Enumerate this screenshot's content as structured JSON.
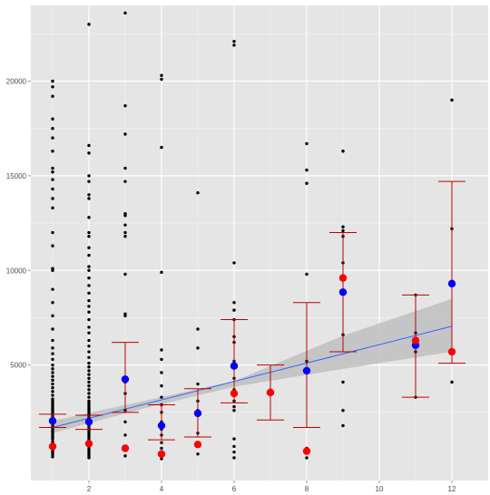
{
  "chart_data": {
    "type": "scatter",
    "title": "",
    "xlabel": "",
    "ylabel": "",
    "xlim": [
      0.4,
      13.0
    ],
    "ylim": [
      -1100,
      24000
    ],
    "x_ticks": [
      2,
      4,
      6,
      8,
      10,
      12
    ],
    "x_tick_labels": [
      "2",
      "4",
      "6",
      "8",
      "10",
      "12"
    ],
    "y_ticks": [
      5000,
      10000,
      15000,
      20000
    ],
    "y_tick_labels": [
      "5000",
      "10000",
      "15000",
      "20000"
    ],
    "grid": true,
    "background": "#e5e5e5",
    "colors": {
      "raw_points": "#000000",
      "mean": "#0000ff",
      "median": "#ff0000",
      "error_bar": "#c00000",
      "trend_line": "#3366ff",
      "confidence_band": "#bfbfbf"
    },
    "raw_points": [
      [
        1,
        150
      ],
      [
        1,
        250
      ],
      [
        1,
        350
      ],
      [
        1,
        450
      ],
      [
        1,
        550
      ],
      [
        1,
        650
      ],
      [
        1,
        750
      ],
      [
        1,
        850
      ],
      [
        1,
        950
      ],
      [
        1,
        1100
      ],
      [
        1,
        1200
      ],
      [
        1,
        1300
      ],
      [
        1,
        1400
      ],
      [
        1,
        1500
      ],
      [
        1,
        1600
      ],
      [
        1,
        1700
      ],
      [
        1,
        1800
      ],
      [
        1,
        1900
      ],
      [
        1,
        2000
      ],
      [
        1,
        2100
      ],
      [
        1,
        2200
      ],
      [
        1,
        2300
      ],
      [
        1,
        2400
      ],
      [
        1,
        2500
      ],
      [
        1,
        2600
      ],
      [
        1,
        2700
      ],
      [
        1,
        2800
      ],
      [
        1,
        2900
      ],
      [
        1,
        3000
      ],
      [
        1,
        3100
      ],
      [
        1,
        3200
      ],
      [
        1,
        3400
      ],
      [
        1,
        3600
      ],
      [
        1,
        3800
      ],
      [
        1,
        4000
      ],
      [
        1,
        4200
      ],
      [
        1,
        4400
      ],
      [
        1,
        4600
      ],
      [
        1,
        4800
      ],
      [
        1,
        5000
      ],
      [
        1,
        5300
      ],
      [
        1,
        5600
      ],
      [
        1,
        5900
      ],
      [
        1,
        6300
      ],
      [
        1,
        6900
      ],
      [
        1,
        7600
      ],
      [
        1,
        8300
      ],
      [
        1,
        9000
      ],
      [
        1,
        10000
      ],
      [
        1,
        10100
      ],
      [
        1,
        11300
      ],
      [
        1,
        12000
      ],
      [
        1,
        13300
      ],
      [
        1,
        13800
      ],
      [
        1,
        14300
      ],
      [
        1,
        14800
      ],
      [
        1,
        15200
      ],
      [
        1,
        15400
      ],
      [
        1,
        16300
      ],
      [
        1,
        17000
      ],
      [
        1,
        17500
      ],
      [
        1,
        18000
      ],
      [
        1,
        19200
      ],
      [
        1,
        19700
      ],
      [
        1,
        20000
      ],
      [
        2,
        100
      ],
      [
        2,
        200
      ],
      [
        2,
        300
      ],
      [
        2,
        400
      ],
      [
        2,
        500
      ],
      [
        2,
        600
      ],
      [
        2,
        700
      ],
      [
        2,
        800
      ],
      [
        2,
        900
      ],
      [
        2,
        1000
      ],
      [
        2,
        1100
      ],
      [
        2,
        1200
      ],
      [
        2,
        1300
      ],
      [
        2,
        1400
      ],
      [
        2,
        1500
      ],
      [
        2,
        1600
      ],
      [
        2,
        1700
      ],
      [
        2,
        1800
      ],
      [
        2,
        1900
      ],
      [
        2,
        2000
      ],
      [
        2,
        2100
      ],
      [
        2,
        2200
      ],
      [
        2,
        2300
      ],
      [
        2,
        2400
      ],
      [
        2,
        2500
      ],
      [
        2,
        2600
      ],
      [
        2,
        2700
      ],
      [
        2,
        2800
      ],
      [
        2,
        2900
      ],
      [
        2,
        3000
      ],
      [
        2,
        3100
      ],
      [
        2,
        3300
      ],
      [
        2,
        3500
      ],
      [
        2,
        3700
      ],
      [
        2,
        3900
      ],
      [
        2,
        4100
      ],
      [
        2,
        4300
      ],
      [
        2,
        4500
      ],
      [
        2,
        4700
      ],
      [
        2,
        4900
      ],
      [
        2,
        5100
      ],
      [
        2,
        5400
      ],
      [
        2,
        5700
      ],
      [
        2,
        6000
      ],
      [
        2,
        6300
      ],
      [
        2,
        6700
      ],
      [
        2,
        7000
      ],
      [
        2,
        7400
      ],
      [
        2,
        7800
      ],
      [
        2,
        8100
      ],
      [
        2,
        8400
      ],
      [
        2,
        8800
      ],
      [
        2,
        9200
      ],
      [
        2,
        9600
      ],
      [
        2,
        10000
      ],
      [
        2,
        10200
      ],
      [
        2,
        10800
      ],
      [
        2,
        11200
      ],
      [
        2,
        11800
      ],
      [
        2,
        12000
      ],
      [
        2,
        12800
      ],
      [
        2,
        13800
      ],
      [
        2,
        14000
      ],
      [
        2,
        14700
      ],
      [
        2,
        15000
      ],
      [
        2,
        16200
      ],
      [
        2,
        16600
      ],
      [
        2,
        23000
      ],
      [
        3,
        200
      ],
      [
        3,
        700
      ],
      [
        3,
        1300
      ],
      [
        3,
        2000
      ],
      [
        3,
        2600
      ],
      [
        3,
        3500
      ],
      [
        3,
        4100
      ],
      [
        3,
        7600
      ],
      [
        3,
        7700
      ],
      [
        3,
        9800
      ],
      [
        3,
        11800
      ],
      [
        3,
        12000
      ],
      [
        3,
        12400
      ],
      [
        3,
        12900
      ],
      [
        3,
        13000
      ],
      [
        3,
        14700
      ],
      [
        3,
        15400
      ],
      [
        3,
        17200
      ],
      [
        3,
        18700
      ],
      [
        3,
        23600
      ],
      [
        4,
        50
      ],
      [
        4,
        200
      ],
      [
        4,
        400
      ],
      [
        4,
        600
      ],
      [
        4,
        900
      ],
      [
        4,
        1300
      ],
      [
        4,
        1600
      ],
      [
        4,
        2000
      ],
      [
        4,
        2500
      ],
      [
        4,
        2900
      ],
      [
        4,
        3300
      ],
      [
        4,
        3900
      ],
      [
        4,
        4600
      ],
      [
        4,
        5300
      ],
      [
        4,
        5800
      ],
      [
        4,
        9900
      ],
      [
        4,
        16500
      ],
      [
        4,
        20100
      ],
      [
        4,
        20300
      ],
      [
        5,
        300
      ],
      [
        5,
        700
      ],
      [
        5,
        900
      ],
      [
        5,
        1400
      ],
      [
        5,
        2600
      ],
      [
        5,
        3100
      ],
      [
        5,
        4000
      ],
      [
        5,
        5900
      ],
      [
        5,
        6900
      ],
      [
        5,
        14100
      ],
      [
        6,
        100
      ],
      [
        6,
        400
      ],
      [
        6,
        700
      ],
      [
        6,
        1100
      ],
      [
        6,
        2600
      ],
      [
        6,
        2800
      ],
      [
        6,
        3100
      ],
      [
        6,
        3700
      ],
      [
        6,
        4300
      ],
      [
        6,
        5200
      ],
      [
        6,
        6200
      ],
      [
        6,
        6500
      ],
      [
        6,
        7400
      ],
      [
        6,
        7900
      ],
      [
        6,
        8300
      ],
      [
        6,
        10400
      ],
      [
        6,
        21900
      ],
      [
        6,
        22100
      ],
      [
        7,
        3600
      ],
      [
        8,
        100
      ],
      [
        8,
        500
      ],
      [
        8,
        600
      ],
      [
        8,
        5200
      ],
      [
        8,
        9800
      ],
      [
        8,
        14600
      ],
      [
        8,
        15300
      ],
      [
        8,
        16700
      ],
      [
        9,
        1800
      ],
      [
        9,
        2600
      ],
      [
        9,
        4100
      ],
      [
        9,
        6600
      ],
      [
        9,
        9500
      ],
      [
        9,
        10400
      ],
      [
        9,
        11800
      ],
      [
        9,
        12100
      ],
      [
        9,
        12300
      ],
      [
        9,
        16300
      ],
      [
        11,
        3300
      ],
      [
        11,
        5700
      ],
      [
        11,
        6700
      ],
      [
        11,
        8700
      ],
      [
        12,
        4100
      ],
      [
        12,
        5800
      ],
      [
        12,
        12200
      ],
      [
        12,
        19000
      ]
    ],
    "series": [
      {
        "x": [
          1,
          2,
          3,
          4,
          5,
          6,
          7,
          8,
          9,
          11,
          12
        ],
        "values": [
          2050,
          2000,
          4250,
          1800,
          2450,
          4950,
          3550,
          4700,
          8850,
          6050,
          9300
        ]
      },
      {
        "x": [
          1,
          2,
          3,
          4,
          5,
          6,
          7,
          8,
          9,
          11,
          12
        ],
        "values": [
          700,
          850,
          600,
          300,
          800,
          3500,
          3550,
          450,
          9600,
          6300,
          5700
        ]
      }
    ],
    "error_bars": [
      {
        "x": 1,
        "low": 1700,
        "high": 2400
      },
      {
        "x": 2,
        "low": 1600,
        "high": 2350
      },
      {
        "x": 3,
        "low": 2500,
        "high": 6200
      },
      {
        "x": 4,
        "low": 1050,
        "high": 2900
      },
      {
        "x": 5,
        "low": 1200,
        "high": 3750
      },
      {
        "x": 6,
        "low": 3000,
        "high": 7400
      },
      {
        "x": 7,
        "low": 2100,
        "high": 5000
      },
      {
        "x": 8,
        "low": 1700,
        "high": 8300
      },
      {
        "x": 9,
        "low": 5700,
        "high": 12000
      },
      {
        "x": 11,
        "low": 3300,
        "high": 8700
      },
      {
        "x": 12,
        "low": 5100,
        "high": 14700
      }
    ],
    "trend_line": {
      "x": [
        1,
        12
      ],
      "y": [
        1700,
        7050
      ]
    },
    "confidence_band": {
      "x": [
        1,
        3.5,
        6,
        9,
        12
      ],
      "low": [
        1400,
        2700,
        3850,
        4800,
        5700
      ],
      "high": [
        2050,
        3100,
        4150,
        6550,
        8500
      ]
    }
  }
}
